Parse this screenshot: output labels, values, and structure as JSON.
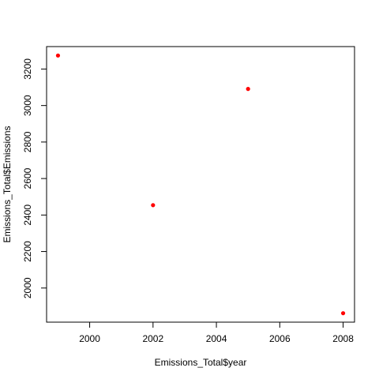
{
  "chart_data": {
    "type": "scatter",
    "title": "",
    "xlabel": "Emissions_Total$year",
    "ylabel": "Emissions_Total$Emissions",
    "x": [
      1999,
      2002,
      2005,
      2008
    ],
    "y": [
      3274,
      2454,
      3091,
      1862
    ],
    "xlim": [
      1998.64,
      2008.36
    ],
    "ylim": [
      1813,
      3323
    ],
    "xticks": [
      2000,
      2002,
      2004,
      2006,
      2008
    ],
    "yticks": [
      2000,
      2200,
      2400,
      2600,
      2800,
      3000,
      3200
    ],
    "point_color": "#ff0000",
    "grid": false,
    "legend": "none"
  }
}
